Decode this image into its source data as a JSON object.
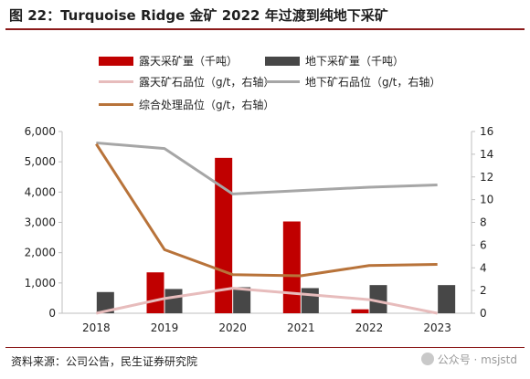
{
  "title": "图 22：Turquoise Ridge 金矿 2022 年过渡到纯地下采矿",
  "source": "资料来源：公司公告，民生证券研究院",
  "watermark": "公众号 · msjstd",
  "chart_data": {
    "type": "bar",
    "categories": [
      "2018",
      "2019",
      "2020",
      "2021",
      "2022",
      "2023"
    ],
    "series": [
      {
        "name": "露天采矿量（千吨）",
        "kind": "bar",
        "axis": "left",
        "color": "#c00000",
        "values": [
          0,
          1350,
          5130,
          3030,
          130,
          0
        ]
      },
      {
        "name": "地下采矿量（千吨）",
        "kind": "bar",
        "axis": "left",
        "color": "#474747",
        "values": [
          700,
          800,
          860,
          830,
          930,
          930
        ]
      },
      {
        "name": "露天矿石品位（g/t，右轴）",
        "kind": "line",
        "axis": "right",
        "color": "#e7bcbc",
        "values": [
          0.0,
          1.3,
          2.2,
          1.7,
          1.2,
          0.0
        ]
      },
      {
        "name": "地下矿石品位（g/t，右轴）",
        "kind": "line",
        "axis": "right",
        "color": "#a6a6a6",
        "values": [
          15.0,
          14.5,
          10.5,
          10.8,
          11.1,
          11.3
        ]
      },
      {
        "name": "综合处理品位（g/t，右轴）",
        "kind": "line",
        "axis": "right",
        "color": "#b8733a",
        "values": [
          14.9,
          5.6,
          3.4,
          3.3,
          4.2,
          4.3
        ]
      }
    ],
    "y_left": {
      "min": 0,
      "max": 6000,
      "ticks": [
        "0",
        "1,000",
        "2,000",
        "3,000",
        "4,000",
        "5,000",
        "6,000"
      ],
      "tick_values": [
        0,
        1000,
        2000,
        3000,
        4000,
        5000,
        6000
      ]
    },
    "y_right": {
      "min": 0,
      "max": 16,
      "ticks": [
        "0",
        "2",
        "4",
        "6",
        "8",
        "10",
        "12",
        "14",
        "16"
      ],
      "tick_values": [
        0,
        2,
        4,
        6,
        8,
        10,
        12,
        14,
        16
      ]
    },
    "legend_position": "top",
    "grid": false
  }
}
